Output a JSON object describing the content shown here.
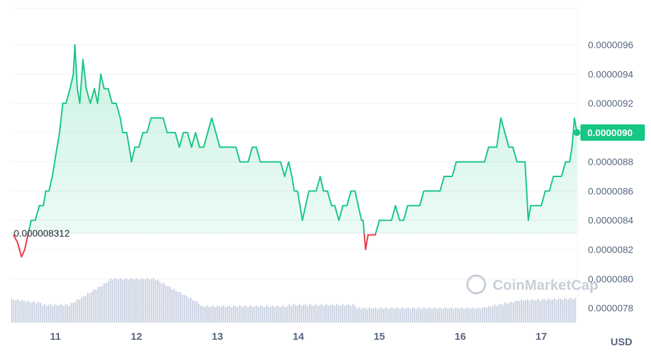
{
  "chart_data": {
    "type": "area",
    "currency_label": "USD",
    "watermark": "CoinMarketCap",
    "baseline": {
      "label": "0.000008312",
      "value": 8.312e-06
    },
    "current_price": {
      "label": "0.0000090",
      "value": 9e-06
    },
    "x_tick_labels": [
      "11",
      "12",
      "13",
      "14",
      "15",
      "16",
      "17"
    ],
    "x_ticks": [
      11,
      12,
      13,
      14,
      15,
      16,
      17
    ],
    "x_range": [
      10.45,
      17.45
    ],
    "y_tick_labels": [
      "0.0000096",
      "0.0000094",
      "0.0000092",
      "0.0000090",
      "0.0000088",
      "0.0000086",
      "0.0000084",
      "0.0000082",
      "0.0000080",
      "0.0000078"
    ],
    "y_ticks": [
      9.6e-06,
      9.4e-06,
      9.2e-06,
      9e-06,
      8.8e-06,
      8.6e-06,
      8.4e-06,
      8.2e-06,
      8e-06,
      7.8e-06
    ],
    "y_range": [
      7.7e-06,
      9.85e-06
    ],
    "grid": true,
    "colors": {
      "up": "#16c784",
      "down": "#ea3943",
      "volume": "#cfd6e4",
      "grid": "#eff2f5",
      "axis_text": "#58667e",
      "badge": "#16c784",
      "badge_text": "#ffffff",
      "watermark": "#c7ced8"
    },
    "series": [
      {
        "values": [
          [
            10.48,
            8.3e-06
          ],
          [
            10.53,
            8.25e-06
          ],
          [
            10.58,
            8.15e-06
          ],
          [
            10.62,
            8.2e-06
          ],
          [
            10.66,
            8.3e-06
          ],
          [
            10.7,
            8.4e-06
          ],
          [
            10.75,
            8.4e-06
          ],
          [
            10.8,
            8.5e-06
          ],
          [
            10.85,
            8.5e-06
          ],
          [
            10.88,
            8.6e-06
          ],
          [
            10.92,
            8.6e-06
          ],
          [
            10.96,
            8.7e-06
          ],
          [
            10.99,
            8.8e-06
          ],
          [
            11.02,
            8.9e-06
          ],
          [
            11.05,
            9e-06
          ],
          [
            11.09,
            9.2e-06
          ],
          [
            11.13,
            9.2e-06
          ],
          [
            11.18,
            9.3e-06
          ],
          [
            11.22,
            9.4e-06
          ],
          [
            11.24,
            9.6e-06
          ],
          [
            11.27,
            9.3e-06
          ],
          [
            11.3,
            9.2e-06
          ],
          [
            11.34,
            9.5e-06
          ],
          [
            11.38,
            9.3e-06
          ],
          [
            11.43,
            9.2e-06
          ],
          [
            11.48,
            9.3e-06
          ],
          [
            11.52,
            9.2e-06
          ],
          [
            11.56,
            9.4e-06
          ],
          [
            11.6,
            9.3e-06
          ],
          [
            11.65,
            9.3e-06
          ],
          [
            11.7,
            9.2e-06
          ],
          [
            11.75,
            9.2e-06
          ],
          [
            11.8,
            9.1e-06
          ],
          [
            11.83,
            9e-06
          ],
          [
            11.88,
            9e-06
          ],
          [
            11.91,
            8.9e-06
          ],
          [
            11.94,
            8.8e-06
          ],
          [
            11.98,
            8.9e-06
          ],
          [
            12.03,
            8.9e-06
          ],
          [
            12.08,
            9e-06
          ],
          [
            12.13,
            9e-06
          ],
          [
            12.18,
            9.1e-06
          ],
          [
            12.23,
            9.1e-06
          ],
          [
            12.28,
            9.1e-06
          ],
          [
            12.33,
            9.1e-06
          ],
          [
            12.38,
            9e-06
          ],
          [
            12.43,
            9e-06
          ],
          [
            12.48,
            9e-06
          ],
          [
            12.53,
            8.9e-06
          ],
          [
            12.58,
            9e-06
          ],
          [
            12.63,
            9e-06
          ],
          [
            12.68,
            8.9e-06
          ],
          [
            12.73,
            9e-06
          ],
          [
            12.78,
            8.9e-06
          ],
          [
            12.83,
            8.9e-06
          ],
          [
            12.88,
            9e-06
          ],
          [
            12.93,
            9.1e-06
          ],
          [
            12.98,
            9e-06
          ],
          [
            13.03,
            8.9e-06
          ],
          [
            13.08,
            8.9e-06
          ],
          [
            13.13,
            8.9e-06
          ],
          [
            13.18,
            8.9e-06
          ],
          [
            13.23,
            8.9e-06
          ],
          [
            13.28,
            8.8e-06
          ],
          [
            13.33,
            8.8e-06
          ],
          [
            13.38,
            8.8e-06
          ],
          [
            13.43,
            8.9e-06
          ],
          [
            13.48,
            8.9e-06
          ],
          [
            13.53,
            8.8e-06
          ],
          [
            13.58,
            8.8e-06
          ],
          [
            13.63,
            8.8e-06
          ],
          [
            13.68,
            8.8e-06
          ],
          [
            13.73,
            8.8e-06
          ],
          [
            13.78,
            8.8e-06
          ],
          [
            13.83,
            8.7e-06
          ],
          [
            13.88,
            8.8e-06
          ],
          [
            13.92,
            8.7e-06
          ],
          [
            13.95,
            8.6e-06
          ],
          [
            13.99,
            8.6e-06
          ],
          [
            14.02,
            8.5e-06
          ],
          [
            14.05,
            8.4e-06
          ],
          [
            14.09,
            8.5e-06
          ],
          [
            14.13,
            8.6e-06
          ],
          [
            14.17,
            8.6e-06
          ],
          [
            14.22,
            8.6e-06
          ],
          [
            14.27,
            8.7e-06
          ],
          [
            14.31,
            8.6e-06
          ],
          [
            14.36,
            8.6e-06
          ],
          [
            14.41,
            8.5e-06
          ],
          [
            14.45,
            8.5e-06
          ],
          [
            14.5,
            8.4e-06
          ],
          [
            14.55,
            8.5e-06
          ],
          [
            14.6,
            8.5e-06
          ],
          [
            14.65,
            8.6e-06
          ],
          [
            14.7,
            8.6e-06
          ],
          [
            14.74,
            8.5e-06
          ],
          [
            14.78,
            8.4e-06
          ],
          [
            14.8,
            8.4e-06
          ],
          [
            14.83,
            8.2e-06
          ],
          [
            14.86,
            8.3e-06
          ],
          [
            14.9,
            8.3e-06
          ],
          [
            14.95,
            8.3e-06
          ],
          [
            15.0,
            8.4e-06
          ],
          [
            15.05,
            8.4e-06
          ],
          [
            15.1,
            8.4e-06
          ],
          [
            15.15,
            8.4e-06
          ],
          [
            15.2,
            8.5e-06
          ],
          [
            15.25,
            8.4e-06
          ],
          [
            15.3,
            8.4e-06
          ],
          [
            15.35,
            8.5e-06
          ],
          [
            15.4,
            8.5e-06
          ],
          [
            15.45,
            8.5e-06
          ],
          [
            15.5,
            8.5e-06
          ],
          [
            15.55,
            8.6e-06
          ],
          [
            15.6,
            8.6e-06
          ],
          [
            15.65,
            8.6e-06
          ],
          [
            15.7,
            8.6e-06
          ],
          [
            15.75,
            8.6e-06
          ],
          [
            15.8,
            8.7e-06
          ],
          [
            15.85,
            8.7e-06
          ],
          [
            15.9,
            8.7e-06
          ],
          [
            15.95,
            8.8e-06
          ],
          [
            16.0,
            8.8e-06
          ],
          [
            16.05,
            8.8e-06
          ],
          [
            16.1,
            8.8e-06
          ],
          [
            16.15,
            8.8e-06
          ],
          [
            16.2,
            8.8e-06
          ],
          [
            16.25,
            8.8e-06
          ],
          [
            16.3,
            8.8e-06
          ],
          [
            16.35,
            8.9e-06
          ],
          [
            16.4,
            8.9e-06
          ],
          [
            16.45,
            8.9e-06
          ],
          [
            16.5,
            9.1e-06
          ],
          [
            16.55,
            9e-06
          ],
          [
            16.6,
            8.9e-06
          ],
          [
            16.65,
            8.9e-06
          ],
          [
            16.7,
            8.8e-06
          ],
          [
            16.75,
            8.8e-06
          ],
          [
            16.8,
            8.8e-06
          ],
          [
            16.82,
            8.6e-06
          ],
          [
            16.84,
            8.4e-06
          ],
          [
            16.87,
            8.5e-06
          ],
          [
            16.9,
            8.5e-06
          ],
          [
            16.95,
            8.5e-06
          ],
          [
            17.0,
            8.5e-06
          ],
          [
            17.05,
            8.6e-06
          ],
          [
            17.1,
            8.6e-06
          ],
          [
            17.15,
            8.7e-06
          ],
          [
            17.2,
            8.7e-06
          ],
          [
            17.25,
            8.7e-06
          ],
          [
            17.3,
            8.8e-06
          ],
          [
            17.35,
            8.8e-06
          ],
          [
            17.38,
            8.9e-06
          ],
          [
            17.41,
            9.1e-06
          ],
          [
            17.44,
            9e-06
          ]
        ]
      }
    ]
  }
}
